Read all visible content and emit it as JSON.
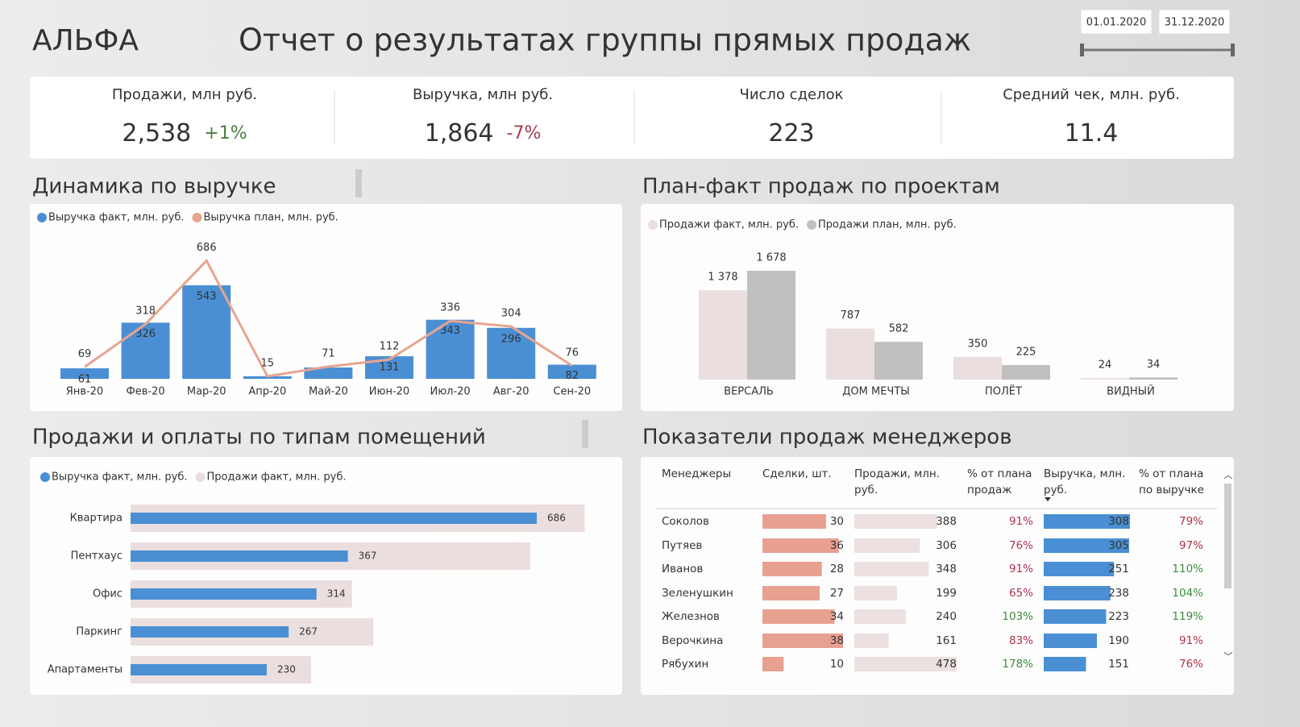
{
  "header": {
    "logo": "АЛЬФА",
    "title": "Отчет о результатах группы прямых продаж",
    "date_from": "01.01.2020",
    "date_to": "31.12.2020"
  },
  "kpis": [
    {
      "label": "Продажи, млн руб.",
      "value": "2,538",
      "change": "+1%"
    },
    {
      "label": "Выручка, млн руб.",
      "value": "1,864",
      "change": "-7%"
    },
    {
      "label": "Число сделок",
      "value": "223"
    },
    {
      "label": "Средний чек, млн. руб.",
      "value": "11.4"
    }
  ],
  "chart_data": [
    {
      "type": "bar_line",
      "title": "Динамика по выручке",
      "categories": [
        "Янв-20",
        "Фев-20",
        "Мар-20",
        "Апр-20",
        "Май-20",
        "Июн-20",
        "Июл-20",
        "Авг-20",
        "Сен-20"
      ],
      "series": [
        {
          "name": "Выручка факт, млн. руб.",
          "color": "#4a8fd4",
          "type": "bar",
          "values": [
            61,
            326,
            543,
            15,
            66,
            131,
            343,
            296,
            82
          ],
          "value_labels": [
            "61",
            "326",
            "543",
            null,
            null,
            "131",
            "343",
            "296",
            "82"
          ]
        },
        {
          "name": "Выручка план, млн. руб.",
          "color": "#e8a48e",
          "type": "line",
          "values": [
            69,
            318,
            686,
            15,
            71,
            112,
            336,
            304,
            76
          ]
        }
      ]
    },
    {
      "type": "grouped_bar",
      "title": "План-факт продаж по проектам",
      "categories": [
        "ВЕРСАЛЬ",
        "ДОМ МЕЧТЫ",
        "ПОЛЁТ",
        "ВИДНЫЙ"
      ],
      "series": [
        {
          "name": "Продажи факт, млн. руб.",
          "color": "#eadede",
          "values": [
            1378,
            787,
            350,
            24
          ],
          "value_labels": [
            "1 378",
            "787",
            "350",
            "24"
          ]
        },
        {
          "name": "Продажи план, млн. руб.",
          "color": "#c0c0c0",
          "values": [
            1678,
            582,
            225,
            34
          ],
          "value_labels": [
            "1 678",
            "582",
            "225",
            "34"
          ]
        }
      ]
    },
    {
      "type": "hbar_overlap",
      "title": "Продажи и оплаты по типам помещений",
      "categories": [
        "Квартира",
        "Пентхаус",
        "Офис",
        "Паркинг",
        "Апартаменты"
      ],
      "series": [
        {
          "name": "Выручка факт, млн. руб.",
          "color": "#4a8fd4",
          "values": [
            686,
            367,
            314,
            267,
            230
          ]
        },
        {
          "name": "Продажи факт, млн. руб.",
          "color": "#eadede",
          "values": [
            767,
            675,
            374,
            410,
            305
          ]
        }
      ]
    }
  ],
  "table": {
    "title": "Показатели продаж менеджеров",
    "columns": [
      "Менеджеры",
      "Сделки, шт.",
      "Продажи, млн. руб.",
      "% от плана продаж",
      "Выручка, млн. руб.",
      "% от плана по выручке"
    ],
    "rows": [
      [
        "Соколов",
        30,
        388,
        "91%",
        308,
        "79%"
      ],
      [
        "Путяев",
        36,
        306,
        "76%",
        305,
        "97%"
      ],
      [
        "Иванов",
        28,
        348,
        "91%",
        251,
        "110%"
      ],
      [
        "Зеленушкин",
        27,
        199,
        "65%",
        238,
        "104%"
      ],
      [
        "Железнов",
        34,
        240,
        "103%",
        223,
        "119%"
      ],
      [
        "Верочкина",
        38,
        161,
        "83%",
        190,
        "91%"
      ],
      [
        "Рябухин",
        10,
        478,
        "178%",
        151,
        "76%"
      ]
    ]
  }
}
